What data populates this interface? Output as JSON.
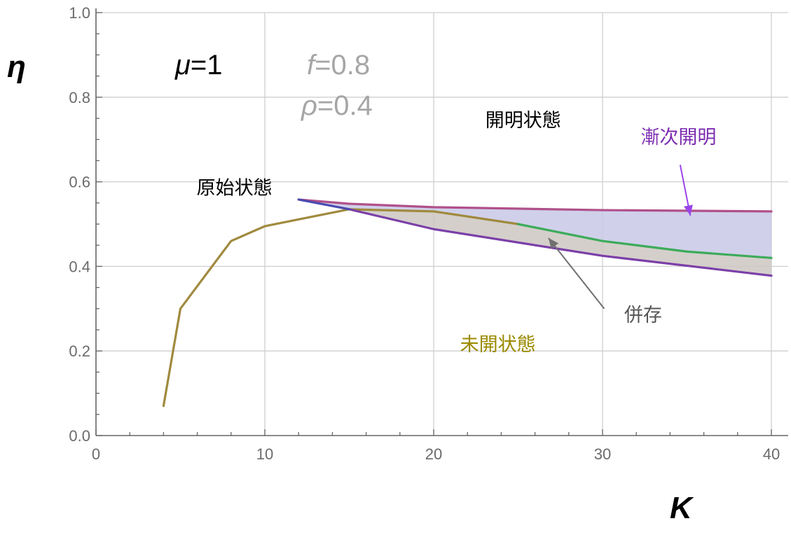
{
  "chart_data": {
    "type": "line",
    "xlabel": "K",
    "ylabel": "η",
    "xlim": [
      0,
      40
    ],
    "ylim": [
      0,
      1
    ],
    "grid": true,
    "x_ticks": [
      0,
      10,
      20,
      30,
      40
    ],
    "x_tick_labels": [
      "0",
      "10",
      "20",
      "30",
      "40"
    ],
    "y_ticks": [
      0,
      0.2,
      0.4,
      0.6,
      0.8,
      1.0
    ],
    "y_tick_labels": [
      "0.0",
      "0.2",
      "0.4",
      "0.6",
      "0.8",
      "1.0"
    ],
    "parameters": [
      {
        "italic": "μ",
        "rest": "=1",
        "color": "#000000"
      },
      {
        "italic": "f",
        "rest": "=0.8",
        "color": "#a6a6a6"
      },
      {
        "italic": "ρ",
        "rest": "=0.4",
        "color": "#a6a6a6"
      }
    ],
    "series": [
      {
        "color": "#a08a3e",
        "points": [
          [
            4,
            0.07
          ],
          [
            5,
            0.3
          ],
          [
            8,
            0.46
          ],
          [
            10,
            0.495
          ],
          [
            15,
            0.535
          ],
          [
            20,
            0.53
          ],
          [
            25,
            0.5
          ]
        ]
      },
      {
        "color": "#3cab5a",
        "points": [
          [
            25,
            0.5
          ],
          [
            30,
            0.46
          ],
          [
            35,
            0.435
          ],
          [
            40,
            0.42
          ]
        ]
      },
      {
        "color": "#b0508a",
        "points": [
          [
            12,
            0.558
          ],
          [
            15,
            0.548
          ],
          [
            20,
            0.54
          ],
          [
            30,
            0.533
          ],
          [
            40,
            0.53
          ]
        ]
      },
      {
        "color": "#7b3fa8",
        "points": [
          [
            15,
            0.535
          ],
          [
            20,
            0.488
          ],
          [
            30,
            0.425
          ],
          [
            40,
            0.378
          ]
        ]
      },
      {
        "color": "#4a4ab0",
        "points": [
          [
            12,
            0.558
          ],
          [
            15,
            0.535
          ]
        ]
      }
    ],
    "shaded_regions": [
      {
        "color": "#c8c8e6",
        "upper": [
          [
            12,
            0.558
          ],
          [
            15,
            0.548
          ],
          [
            20,
            0.54
          ],
          [
            30,
            0.533
          ],
          [
            40,
            0.53
          ]
        ],
        "lower": [
          [
            12,
            0.558
          ],
          [
            15,
            0.535
          ],
          [
            20,
            0.53
          ],
          [
            25,
            0.5
          ],
          [
            30,
            0.46
          ],
          [
            35,
            0.435
          ],
          [
            40,
            0.42
          ]
        ]
      },
      {
        "color": "#cdc7c2",
        "upper": [
          [
            15,
            0.535
          ],
          [
            20,
            0.53
          ],
          [
            25,
            0.5
          ],
          [
            30,
            0.46
          ],
          [
            35,
            0.435
          ],
          [
            40,
            0.42
          ]
        ],
        "lower": [
          [
            15,
            0.535
          ],
          [
            20,
            0.488
          ],
          [
            30,
            0.425
          ],
          [
            40,
            0.378
          ]
        ]
      }
    ],
    "annotations": [
      {
        "text": "原始状態",
        "color": "#000000",
        "x": 8.2,
        "y": 0.57
      },
      {
        "text": "開明状態",
        "color": "#000000",
        "x": 25.3,
        "y": 0.73
      },
      {
        "text": "漸次開明",
        "color": "#7b2bb0",
        "x": 34.5,
        "y": 0.69
      },
      {
        "text": "併存",
        "color": "#555555",
        "x": 32.4,
        "y": 0.27
      },
      {
        "text": "未開状態",
        "color": "#9a8a00",
        "x": 23.8,
        "y": 0.2
      }
    ],
    "arrows": [
      {
        "color": "#9a44e8",
        "from": [
          34.6,
          0.64
        ],
        "to": [
          35.2,
          0.52
        ]
      },
      {
        "color": "#707070",
        "from": [
          30.1,
          0.3
        ],
        "to": [
          26.8,
          0.467
        ]
      }
    ]
  }
}
